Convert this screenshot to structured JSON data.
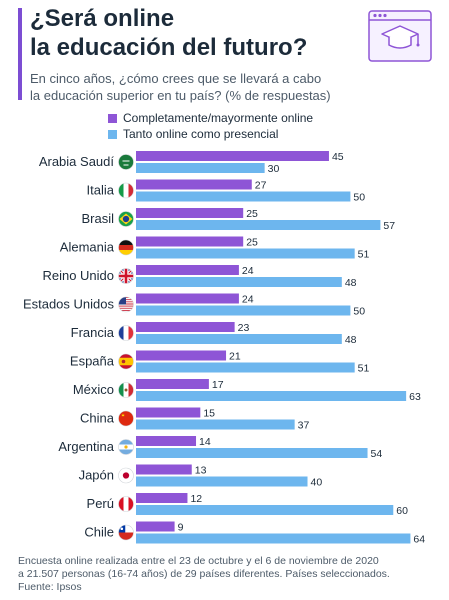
{
  "title": [
    "¿Será online",
    "la educación del futuro?"
  ],
  "subtitle": [
    "En cinco años, ¿cómo crees que se llevará a cabo",
    "la educación superior en tu país? (% de respuestas)"
  ],
  "icons": {
    "illustration": "graduation-cap-browser-icon"
  },
  "colors": {
    "series_online": "#8e55d6",
    "series_mixed": "#6db6ee",
    "accent": "#7c4dd3"
  },
  "chart_data": {
    "type": "bar",
    "orientation": "horizontal",
    "categories": [
      "Arabia Saudí",
      "Italia",
      "Brasil",
      "Alemania",
      "Reino Unido",
      "Estados Unidos",
      "Francia",
      "España",
      "México",
      "China",
      "Argentina",
      "Japón",
      "Perú",
      "Chile"
    ],
    "series": [
      {
        "name": "Completamente/mayormente online",
        "values": [
          45,
          27,
          25,
          25,
          24,
          24,
          23,
          21,
          17,
          15,
          14,
          13,
          12,
          9
        ]
      },
      {
        "name": "Tanto online como presencial",
        "values": [
          30,
          50,
          57,
          51,
          48,
          50,
          48,
          51,
          63,
          37,
          54,
          40,
          60,
          64
        ]
      }
    ],
    "flag_icons": [
      "saudi-arabia-flag-icon",
      "italy-flag-icon",
      "brazil-flag-icon",
      "germany-flag-icon",
      "uk-flag-icon",
      "usa-flag-icon",
      "france-flag-icon",
      "spain-flag-icon",
      "mexico-flag-icon",
      "china-flag-icon",
      "argentina-flag-icon",
      "japan-flag-icon",
      "peru-flag-icon",
      "chile-flag-icon"
    ],
    "xlim": [
      0,
      66
    ],
    "value_labels": true,
    "legend_position": "top"
  },
  "footer": [
    "Encuesta online realizada entre el 23 de octubre y el 6 de noviembre de 2020",
    "a 21.507 personas (16-74 años) de 29 países diferentes. Países seleccionados.",
    "Fuente: Ipsos"
  ]
}
